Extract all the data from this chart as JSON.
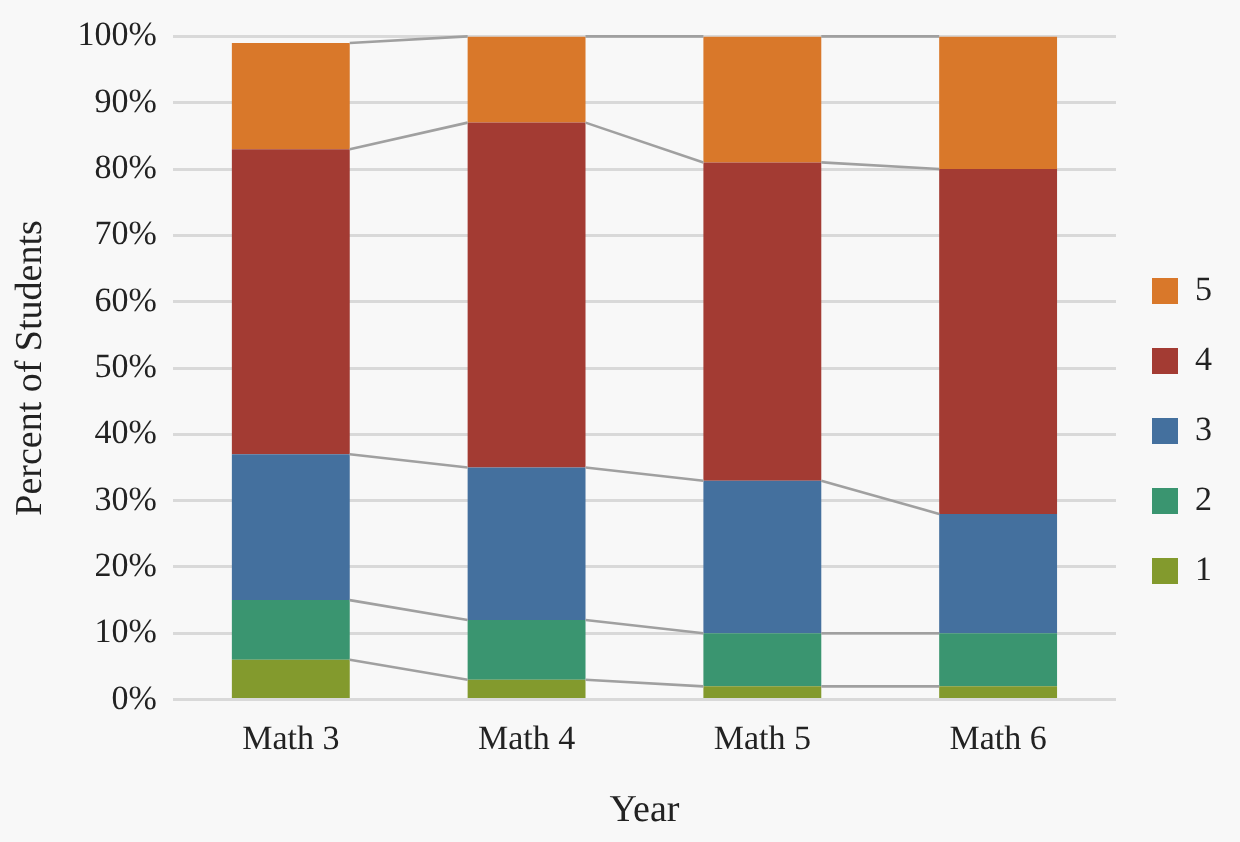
{
  "chart_data": {
    "type": "bar",
    "stacked": true,
    "xlabel": "Year",
    "ylabel": "Percent of Students",
    "categories": [
      "Math 3",
      "Math 4",
      "Math 5",
      "Math 6"
    ],
    "series": [
      {
        "name": "1",
        "color": "#839a2d",
        "values": [
          6,
          3,
          2,
          2
        ]
      },
      {
        "name": "2",
        "color": "#3a9570",
        "values": [
          9,
          9,
          8,
          8
        ]
      },
      {
        "name": "3",
        "color": "#44709e",
        "values": [
          22,
          23,
          23,
          18
        ]
      },
      {
        "name": "4",
        "color": "#a33b33",
        "values": [
          46,
          52,
          48,
          52
        ]
      },
      {
        "name": "5",
        "color": "#d9782a",
        "values": [
          16,
          13,
          19,
          20
        ]
      }
    ],
    "ylim": [
      0,
      100
    ],
    "yticks": [
      {
        "value": 0,
        "label": "0%"
      },
      {
        "value": 10,
        "label": "10%"
      },
      {
        "value": 20,
        "label": "20%"
      },
      {
        "value": 30,
        "label": "30%"
      },
      {
        "value": 40,
        "label": "40%"
      },
      {
        "value": 50,
        "label": "50%"
      },
      {
        "value": 60,
        "label": "60%"
      },
      {
        "value": 70,
        "label": "70%"
      },
      {
        "value": 80,
        "label": "80%"
      },
      {
        "value": 90,
        "label": "90%"
      },
      {
        "value": 100,
        "label": "100%"
      }
    ],
    "grid": "y",
    "legend": "right"
  }
}
